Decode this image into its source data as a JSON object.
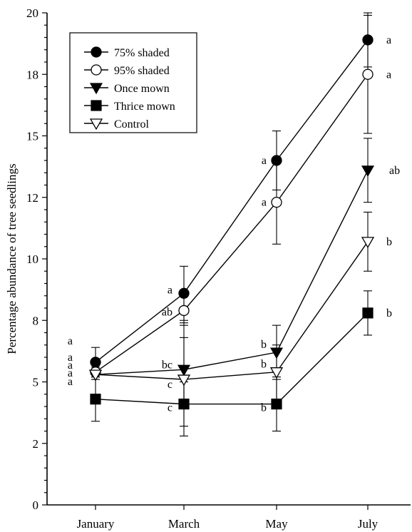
{
  "chart_data": {
    "type": "line",
    "title": "",
    "xlabel": "",
    "ylabel": "Percentage abundance of tree seedlings",
    "categories": [
      "January",
      "March",
      "May",
      "July"
    ],
    "ylim": [
      0,
      20
    ],
    "y_ticks": [
      0,
      2,
      5,
      8,
      10,
      12,
      15,
      18,
      20
    ],
    "y_tick_labels": [
      "0",
      "2",
      "5",
      "8",
      "10",
      "12",
      "15",
      "18",
      "20"
    ],
    "grid": false,
    "legend_position": "top-left",
    "series": [
      {
        "name": "75% shaded",
        "marker": "circle-filled",
        "values": [
          5.8,
          8.6,
          14.0,
          18.9
        ],
        "errors": [
          0.6,
          1.1,
          1.2,
          1.1
        ],
        "sig_labels": [
          "a",
          "a",
          "a",
          "a"
        ]
      },
      {
        "name": "95% shaded",
        "marker": "circle-open",
        "values": [
          5.4,
          7.9,
          12.3,
          17.5
        ],
        "errors": [
          0.2,
          0.6,
          1.7,
          2.4
        ],
        "sig_labels": [
          "a",
          "ab",
          "a",
          "a"
        ]
      },
      {
        "name": "Once mown",
        "marker": "triangle-down-filled",
        "values": [
          5.3,
          5.5,
          6.2,
          13.6
        ],
        "errors": [
          0.2,
          1.3,
          1.1,
          1.3
        ],
        "sig_labels": [
          "a",
          "bc",
          "b",
          "ab"
        ]
      },
      {
        "name": "Thrice mown",
        "marker": "square-filled",
        "values": [
          4.3,
          4.1,
          4.1,
          7.8
        ],
        "errors": [
          0.9,
          0.9,
          1.1,
          0.9
        ],
        "sig_labels": [
          "a",
          "c",
          "b",
          "b"
        ]
      },
      {
        "name": "Control",
        "marker": "triangle-down-open",
        "values": [
          5.3,
          5.1,
          5.4,
          10.7
        ],
        "errors": [
          0.2,
          2.3,
          1.1,
          1.2
        ],
        "sig_labels": [
          "a",
          "c",
          "b",
          "b"
        ]
      }
    ]
  }
}
